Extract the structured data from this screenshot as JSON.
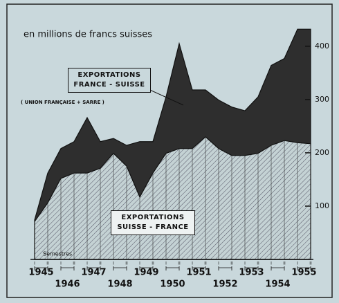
{
  "chart_data": {
    "type": "area",
    "title": "en millions de francs suisses",
    "annotations": [
      "( UNION FRANÇAISE + SARRE )",
      "Semestres"
    ],
    "categories": [
      "I",
      "II",
      "I",
      "II",
      "I",
      "II",
      "I",
      "II",
      "I",
      "II",
      "I",
      "II",
      "I",
      "II",
      "I",
      "II",
      "I",
      "II",
      "I",
      "II",
      "I",
      "II"
    ],
    "years": [
      "1945",
      "1946",
      "1947",
      "1948",
      "1949",
      "1950",
      "1951",
      "1952",
      "1953",
      "1954",
      "1955"
    ],
    "series": [
      {
        "name": "EXPORTATIONS FRANCE - SUISSE",
        "color": "#2e2e2e",
        "values": [
          74,
          162,
          208,
          221,
          266,
          221,
          227,
          214,
          221,
          221,
          305,
          405,
          318,
          318,
          299,
          286,
          279,
          305,
          364,
          377,
          432,
          432
        ]
      },
      {
        "name": "EXPORTATIONS SUISSE - FRANCE",
        "color": "#c4d2d4",
        "values": [
          71,
          106,
          152,
          162,
          162,
          171,
          199,
          175,
          117,
          162,
          199,
          208,
          208,
          230,
          208,
          195,
          195,
          199,
          214,
          223,
          219,
          217
        ]
      }
    ],
    "ylim": [
      0,
      440
    ],
    "yticks": [
      100,
      200,
      300,
      400
    ],
    "grid": true
  }
}
